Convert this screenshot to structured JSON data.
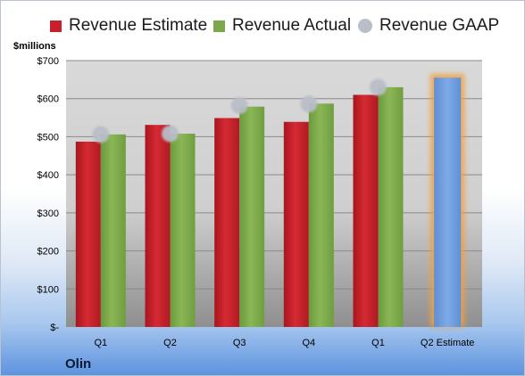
{
  "company": "Olin",
  "units_label": "$millions",
  "legend": [
    {
      "label": "Revenue Estimate",
      "color": "#c8202a",
      "shape": "square"
    },
    {
      "label": "Revenue Actual",
      "color": "#7ba84a",
      "shape": "square"
    },
    {
      "label": "Revenue GAAP",
      "color": "#b9bec8",
      "shape": "circle"
    }
  ],
  "chart_data": {
    "type": "bar",
    "categories": [
      "Q1",
      "Q2",
      "Q3",
      "Q4",
      "Q1",
      "Q2 Estimate"
    ],
    "ylim": [
      0,
      700
    ],
    "y_ticks": [
      0,
      100,
      200,
      300,
      400,
      500,
      600,
      700
    ],
    "y_tick_labels": [
      "$-",
      "$100",
      "$200",
      "$300",
      "$400",
      "$500",
      "$600",
      "$700"
    ],
    "grid": true,
    "legend_position": "top",
    "series": [
      {
        "name": "Revenue Estimate",
        "type": "bar",
        "color": "#c8202a",
        "values": [
          487,
          531,
          549,
          539,
          610,
          null
        ]
      },
      {
        "name": "Revenue Actual",
        "type": "bar",
        "color": "#7ba84a",
        "values": [
          506,
          508,
          579,
          587,
          630,
          null
        ]
      },
      {
        "name": "Revenue GAAP",
        "type": "scatter",
        "color": "#b9bec8",
        "values": [
          506,
          508,
          582,
          586,
          630,
          null
        ]
      }
    ],
    "projection": {
      "category": "Q2 Estimate",
      "value": 655,
      "color": "#6e9fe0",
      "glow": "#f0a040"
    }
  }
}
